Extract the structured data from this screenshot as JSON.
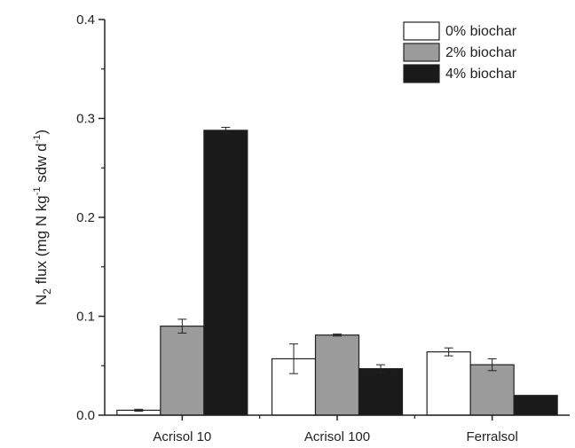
{
  "chart_data": {
    "type": "bar",
    "categories": [
      "Acrisol 10",
      "Acrisol 100",
      "Ferralsol"
    ],
    "series": [
      {
        "name": "0% biochar",
        "values": [
          0.005,
          0.057,
          0.064
        ],
        "errors": [
          0.001,
          0.015,
          0.004
        ],
        "color": "#ffffff"
      },
      {
        "name": "2% biochar",
        "values": [
          0.09,
          0.081,
          0.051
        ],
        "errors": [
          0.007,
          0.001,
          0.006
        ],
        "color": "#9b9b9b"
      },
      {
        "name": "4% biochar",
        "values": [
          0.288,
          0.047,
          0.02
        ],
        "errors": [
          0.003,
          0.004,
          0.0
        ],
        "color": "#1a1a1a"
      }
    ],
    "ylabel": {
      "main": "N",
      "sub": "2",
      "mid": " flux (mg N kg",
      "sup1": "-1",
      "mid2": " sdw d",
      "sup2": "-1",
      "end": ")"
    },
    "ylim": [
      0,
      0.4
    ],
    "yticks": [
      "0.0",
      "0.1",
      "0.2",
      "0.3",
      "0.4"
    ],
    "legend": "top-right",
    "grid": false
  }
}
